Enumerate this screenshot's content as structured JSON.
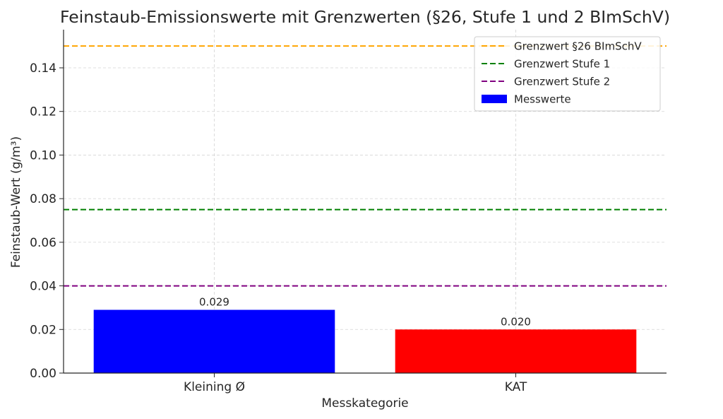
{
  "chart_data": {
    "type": "bar",
    "title": "Feinstaub-Emissionswerte mit Grenzwerten (§26, Stufe 1 und 2 BImSchV)",
    "xlabel": "Messkategorie",
    "ylabel": "Feinstaub-Wert (g/m³)",
    "ylim": [
      0,
      0.1575
    ],
    "yticks": [
      0.0,
      0.02,
      0.04,
      0.06,
      0.08,
      0.1,
      0.12,
      0.14
    ],
    "ytick_labels": [
      "0.00",
      "0.02",
      "0.04",
      "0.06",
      "0.08",
      "0.10",
      "0.12",
      "0.14"
    ],
    "grid": true,
    "legend_position": "top-right",
    "categories": [
      "Kleining Ø",
      "KAT"
    ],
    "series": [
      {
        "name": "Messwerte",
        "values": [
          0.029,
          0.02
        ],
        "value_labels": [
          "0.029",
          "0.020"
        ],
        "colors": [
          "#0000ff",
          "#ff0000"
        ]
      }
    ],
    "reference_lines": [
      {
        "name": "Grenzwert §26 BImSchV",
        "value": 0.15,
        "color": "#ffa500"
      },
      {
        "name": "Grenzwert Stufe 1",
        "value": 0.075,
        "color": "#008000"
      },
      {
        "name": "Grenzwert Stufe 2",
        "value": 0.04,
        "color": "#800080"
      }
    ]
  }
}
